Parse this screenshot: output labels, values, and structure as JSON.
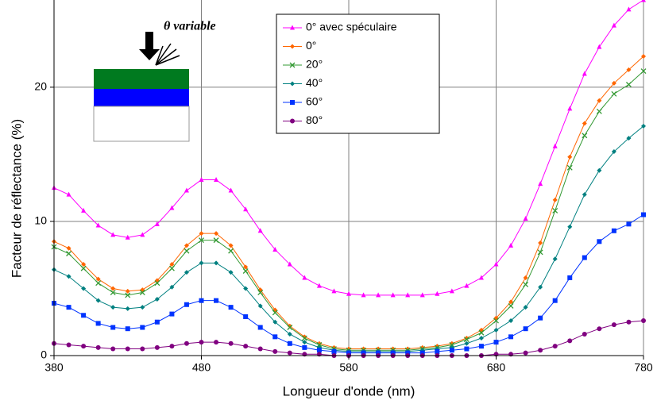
{
  "chart_data": {
    "type": "line",
    "x_label": "Longueur d'onde (nm)",
    "y_label": "Facteur de réflectance (%)",
    "annotation": "θ variable",
    "x": [
      380,
      390,
      400,
      410,
      420,
      430,
      440,
      450,
      460,
      470,
      480,
      490,
      500,
      510,
      520,
      530,
      540,
      550,
      560,
      570,
      580,
      590,
      600,
      610,
      620,
      630,
      640,
      650,
      660,
      670,
      680,
      690,
      700,
      710,
      720,
      730,
      740,
      750,
      760,
      770,
      780
    ],
    "xlim": [
      380,
      780
    ],
    "xticks": [
      380,
      480,
      580,
      680,
      780
    ],
    "ylim": [
      0,
      26.5
    ],
    "yticks": [
      0,
      10,
      20
    ],
    "grid": true,
    "legend": "top",
    "series": [
      {
        "name": "0° avec spéculaire",
        "color": "#ff00ff",
        "marker": "triangle",
        "values": [
          12.5,
          12.0,
          10.8,
          9.7,
          9.0,
          8.8,
          9.0,
          9.8,
          11.0,
          12.3,
          13.1,
          13.1,
          12.3,
          10.9,
          9.3,
          7.9,
          6.8,
          5.8,
          5.2,
          4.8,
          4.6,
          4.5,
          4.5,
          4.5,
          4.5,
          4.5,
          4.6,
          4.8,
          5.2,
          5.8,
          6.8,
          8.2,
          10.2,
          12.8,
          15.6,
          18.4,
          21.0,
          23.0,
          24.6,
          25.8,
          26.5
        ]
      },
      {
        "name": "0°",
        "color": "#ff6600",
        "marker": "diamond",
        "values": [
          8.5,
          8.0,
          6.8,
          5.7,
          5.0,
          4.8,
          4.9,
          5.6,
          6.8,
          8.2,
          9.1,
          9.1,
          8.2,
          6.6,
          4.9,
          3.4,
          2.2,
          1.4,
          0.9,
          0.6,
          0.5,
          0.5,
          0.5,
          0.5,
          0.5,
          0.6,
          0.7,
          0.9,
          1.3,
          1.9,
          2.8,
          4.0,
          5.8,
          8.4,
          11.6,
          14.8,
          17.3,
          19.0,
          20.3,
          21.3,
          22.3
        ]
      },
      {
        "name": "20°",
        "color": "#339933",
        "marker": "cross",
        "values": [
          8.1,
          7.6,
          6.5,
          5.4,
          4.7,
          4.5,
          4.7,
          5.4,
          6.5,
          7.8,
          8.6,
          8.6,
          7.8,
          6.3,
          4.7,
          3.2,
          2.1,
          1.3,
          0.8,
          0.5,
          0.4,
          0.4,
          0.4,
          0.4,
          0.4,
          0.5,
          0.6,
          0.8,
          1.2,
          1.7,
          2.6,
          3.7,
          5.3,
          7.7,
          10.8,
          14.0,
          16.4,
          18.2,
          19.5,
          20.2,
          21.2
        ]
      },
      {
        "name": "40°",
        "color": "#008080",
        "marker": "diamond",
        "values": [
          6.4,
          5.9,
          5.0,
          4.1,
          3.6,
          3.5,
          3.6,
          4.2,
          5.1,
          6.2,
          6.9,
          6.9,
          6.2,
          5.0,
          3.7,
          2.5,
          1.6,
          1.0,
          0.6,
          0.4,
          0.3,
          0.3,
          0.3,
          0.3,
          0.3,
          0.4,
          0.5,
          0.6,
          0.9,
          1.3,
          1.9,
          2.6,
          3.6,
          5.1,
          7.2,
          9.6,
          12.0,
          13.8,
          15.2,
          16.2,
          17.1
        ]
      },
      {
        "name": "60°",
        "color": "#0033ff",
        "marker": "square",
        "values": [
          3.9,
          3.6,
          3.0,
          2.4,
          2.1,
          2.0,
          2.1,
          2.5,
          3.1,
          3.8,
          4.1,
          4.1,
          3.6,
          2.9,
          2.1,
          1.4,
          0.9,
          0.6,
          0.4,
          0.3,
          0.2,
          0.2,
          0.2,
          0.2,
          0.2,
          0.2,
          0.3,
          0.4,
          0.5,
          0.7,
          1.0,
          1.4,
          2.0,
          2.8,
          4.1,
          5.8,
          7.3,
          8.5,
          9.3,
          9.8,
          10.5
        ]
      },
      {
        "name": "80°",
        "color": "#800080",
        "marker": "circle",
        "values": [
          0.9,
          0.8,
          0.7,
          0.6,
          0.5,
          0.5,
          0.5,
          0.6,
          0.7,
          0.9,
          1.0,
          1.0,
          0.9,
          0.7,
          0.5,
          0.3,
          0.2,
          0.1,
          0.1,
          0.0,
          0.0,
          0.0,
          0.0,
          0.0,
          0.0,
          0.0,
          0.0,
          0.0,
          0.0,
          0.0,
          0.1,
          0.1,
          0.2,
          0.4,
          0.7,
          1.1,
          1.6,
          2.0,
          2.3,
          2.5,
          2.6
        ]
      }
    ]
  }
}
